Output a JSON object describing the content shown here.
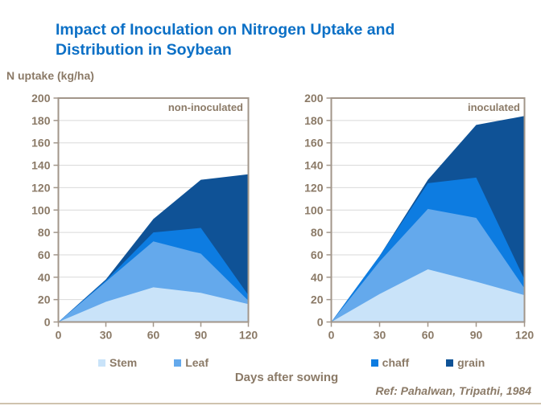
{
  "slide": {
    "title": "Impact of Inoculation on Nitrogen Uptake and Distribution in Soybean",
    "y_axis_title": "N uptake (kg/ha)",
    "x_axis_title": "Days after sowing",
    "reference": "Ref: Pahalwan, Tripathi, 1984"
  },
  "colors": {
    "title": "#0c70c6",
    "text": "#8b7a67",
    "frame": "#a2968a",
    "grid": "#d9d9d9",
    "stem": "#c9e3f9",
    "leaf": "#64a9ec",
    "chaff": "#0d7ce1",
    "grain": "#0f5296",
    "bottom_rule": "#cfc3ae"
  },
  "legends": {
    "left": [
      {
        "label": "Stem",
        "color_key": "stem"
      },
      {
        "label": "Leaf",
        "color_key": "leaf"
      }
    ],
    "right": [
      {
        "label": "chaff",
        "color_key": "chaff"
      },
      {
        "label": "grain",
        "color_key": "grain"
      }
    ]
  },
  "chart_data": [
    {
      "type": "area",
      "stacked": true,
      "panel_label": "non-inoculated",
      "x": [
        0,
        30,
        60,
        90,
        120
      ],
      "x_ticks": [
        0,
        30,
        60,
        90,
        120
      ],
      "y_ticks": [
        0,
        20,
        40,
        60,
        80,
        100,
        120,
        140,
        160,
        180,
        200
      ],
      "ylim": [
        0,
        200
      ],
      "xlim": [
        0,
        120
      ],
      "grid": true,
      "series": [
        {
          "name": "Stem",
          "color_key": "stem",
          "values": [
            0,
            18,
            31,
            26,
            16
          ]
        },
        {
          "name": "Leaf",
          "color_key": "leaf",
          "values": [
            0,
            18,
            41,
            35,
            3
          ]
        },
        {
          "name": "chaff",
          "color_key": "chaff",
          "values": [
            0,
            1,
            8,
            23,
            5
          ]
        },
        {
          "name": "grain",
          "color_key": "grain",
          "values": [
            0,
            1,
            12,
            43,
            108
          ]
        }
      ],
      "cumulative_tops": {
        "stem": [
          0,
          18,
          31,
          26,
          16
        ],
        "leaf": [
          0,
          36,
          72,
          61,
          19
        ],
        "chaff": [
          0,
          37,
          80,
          84,
          24
        ],
        "grain": [
          0,
          38,
          92,
          127,
          132
        ]
      }
    },
    {
      "type": "area",
      "stacked": true,
      "panel_label": "inoculated",
      "x": [
        0,
        30,
        60,
        90,
        120
      ],
      "x_ticks": [
        0,
        30,
        60,
        90,
        120
      ],
      "y_ticks": [
        0,
        20,
        40,
        60,
        80,
        100,
        120,
        140,
        160,
        180,
        200
      ],
      "ylim": [
        0,
        200
      ],
      "xlim": [
        0,
        120
      ],
      "grid": true,
      "series": [
        {
          "name": "Stem",
          "color_key": "stem",
          "values": [
            0,
            25,
            47,
            36,
            24
          ]
        },
        {
          "name": "Leaf",
          "color_key": "leaf",
          "values": [
            0,
            29,
            54,
            57,
            6
          ]
        },
        {
          "name": "chaff",
          "color_key": "chaff",
          "values": [
            0,
            5,
            23,
            36,
            8
          ]
        },
        {
          "name": "grain",
          "color_key": "grain",
          "values": [
            0,
            0,
            3,
            47,
            146
          ]
        }
      ],
      "cumulative_tops": {
        "stem": [
          0,
          25,
          47,
          36,
          24
        ],
        "leaf": [
          0,
          54,
          101,
          93,
          30
        ],
        "chaff": [
          0,
          59,
          124,
          129,
          38
        ],
        "grain": [
          0,
          59,
          127,
          176,
          184
        ]
      }
    }
  ]
}
